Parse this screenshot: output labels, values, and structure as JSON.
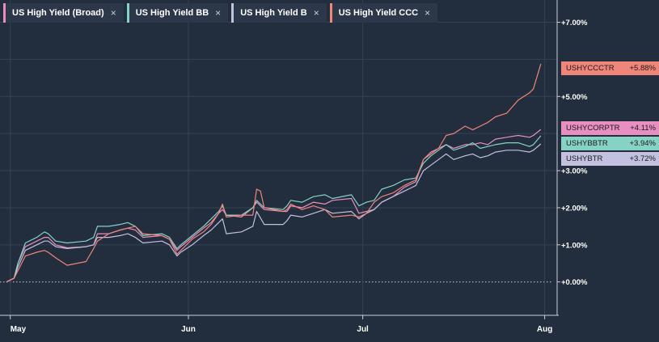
{
  "tabs": [
    {
      "label": "US High Yield (Broad)",
      "close": "×",
      "color": "#e98ec0"
    },
    {
      "label": "US High Yield BB",
      "close": "×",
      "color": "#86d2c5"
    },
    {
      "label": "US High Yield B",
      "close": "×",
      "color": "#c3c0e0"
    },
    {
      "label": "US High Yield CCC",
      "close": "×",
      "color": "#f0857a"
    }
  ],
  "tags": [
    {
      "ticker": "USHYCCCTR",
      "value": "+5.88%",
      "color": "#f0857a"
    },
    {
      "ticker": "USHYCORPTR",
      "value": "+4.11%",
      "color": "#e98ec0"
    },
    {
      "ticker": "USHYBBTR",
      "value": "+3.94%",
      "color": "#86d2c5"
    },
    {
      "ticker": "USHYBTR",
      "value": "+3.72%",
      "color": "#c3c0e0"
    }
  ],
  "chart_data": {
    "type": "line",
    "x_tick_labels": [
      "May",
      "Jun",
      "Jul",
      "Aug"
    ],
    "y_tick_labels": [
      "+0.00%",
      "+1.00%",
      "+2.00%",
      "+3.00%",
      "+5.00%",
      "+7.00%"
    ],
    "y_ticks": [
      0,
      1,
      2,
      3,
      5,
      7
    ],
    "ylim": [
      -0.9,
      7.6
    ],
    "x_ticks": [
      0,
      47,
      93,
      141
    ],
    "xlim": [
      -1,
      143
    ],
    "grid": true,
    "series": [
      {
        "name": "US High Yield (Broad)",
        "color": "#e98ec0",
        "points": [
          [
            -1,
            0
          ],
          [
            1,
            0.1
          ],
          [
            2,
            0.5
          ],
          [
            4,
            0.95
          ],
          [
            7,
            1.1
          ],
          [
            9,
            1.2
          ],
          [
            10,
            1.2
          ],
          [
            12,
            1.0
          ],
          [
            15,
            0.92
          ],
          [
            20,
            0.95
          ],
          [
            22,
            1.0
          ],
          [
            23,
            1.3
          ],
          [
            26,
            1.3
          ],
          [
            29,
            1.4
          ],
          [
            31,
            1.45
          ],
          [
            33,
            1.4
          ],
          [
            35,
            1.2
          ],
          [
            40,
            1.25
          ],
          [
            42,
            1.15
          ],
          [
            44,
            0.85
          ],
          [
            45,
            0.95
          ],
          [
            48,
            1.2
          ],
          [
            51,
            1.45
          ],
          [
            53,
            1.6
          ],
          [
            55,
            1.85
          ],
          [
            56,
            1.95
          ],
          [
            57,
            1.8
          ],
          [
            61,
            1.75
          ],
          [
            64,
            2.0
          ],
          [
            65,
            2.15
          ],
          [
            67,
            1.95
          ],
          [
            72,
            1.9
          ],
          [
            73,
            1.9
          ],
          [
            74,
            2.05
          ],
          [
            77,
            2.0
          ],
          [
            80,
            2.15
          ],
          [
            83,
            2.1
          ],
          [
            85,
            2.2
          ],
          [
            90,
            2.25
          ],
          [
            92,
            1.85
          ],
          [
            94,
            1.9
          ],
          [
            96,
            1.95
          ],
          [
            98,
            2.15
          ],
          [
            101,
            2.3
          ],
          [
            104,
            2.55
          ],
          [
            107,
            2.7
          ],
          [
            109,
            3.3
          ],
          [
            111,
            3.5
          ],
          [
            113,
            3.6
          ],
          [
            115,
            3.7
          ],
          [
            117,
            3.6
          ],
          [
            120,
            3.7
          ],
          [
            122,
            3.7
          ],
          [
            124,
            3.75
          ],
          [
            126,
            3.7
          ],
          [
            128,
            3.85
          ],
          [
            131,
            3.9
          ],
          [
            134,
            3.95
          ],
          [
            137,
            3.9
          ],
          [
            138,
            3.95
          ],
          [
            140,
            4.11
          ]
        ]
      },
      {
        "name": "US High Yield BB",
        "color": "#86d2c5",
        "points": [
          [
            -1,
            0
          ],
          [
            1,
            0.1
          ],
          [
            2,
            0.5
          ],
          [
            4,
            1.05
          ],
          [
            7,
            1.2
          ],
          [
            9,
            1.35
          ],
          [
            10,
            1.3
          ],
          [
            12,
            1.1
          ],
          [
            15,
            1.05
          ],
          [
            20,
            1.1
          ],
          [
            22,
            1.2
          ],
          [
            23,
            1.5
          ],
          [
            26,
            1.5
          ],
          [
            29,
            1.55
          ],
          [
            31,
            1.6
          ],
          [
            33,
            1.5
          ],
          [
            35,
            1.25
          ],
          [
            40,
            1.3
          ],
          [
            42,
            1.2
          ],
          [
            44,
            0.9
          ],
          [
            45,
            1.0
          ],
          [
            48,
            1.25
          ],
          [
            51,
            1.5
          ],
          [
            53,
            1.7
          ],
          [
            55,
            1.9
          ],
          [
            56,
            2.05
          ],
          [
            57,
            1.8
          ],
          [
            61,
            1.8
          ],
          [
            64,
            2.0
          ],
          [
            65,
            2.2
          ],
          [
            67,
            2.0
          ],
          [
            72,
            1.95
          ],
          [
            73,
            2.05
          ],
          [
            74,
            2.2
          ],
          [
            77,
            2.15
          ],
          [
            80,
            2.3
          ],
          [
            83,
            2.35
          ],
          [
            85,
            2.25
          ],
          [
            90,
            2.35
          ],
          [
            92,
            2.05
          ],
          [
            94,
            2.15
          ],
          [
            96,
            2.2
          ],
          [
            98,
            2.5
          ],
          [
            101,
            2.6
          ],
          [
            104,
            2.75
          ],
          [
            107,
            2.8
          ],
          [
            109,
            3.2
          ],
          [
            111,
            3.4
          ],
          [
            113,
            3.55
          ],
          [
            115,
            3.7
          ],
          [
            117,
            3.55
          ],
          [
            120,
            3.65
          ],
          [
            122,
            3.75
          ],
          [
            124,
            3.6
          ],
          [
            126,
            3.65
          ],
          [
            128,
            3.7
          ],
          [
            131,
            3.75
          ],
          [
            134,
            3.75
          ],
          [
            137,
            3.65
          ],
          [
            138,
            3.7
          ],
          [
            140,
            3.94
          ]
        ]
      },
      {
        "name": "US High Yield B",
        "color": "#c3c0e0",
        "points": [
          [
            -1,
            0
          ],
          [
            1,
            0.1
          ],
          [
            2,
            0.4
          ],
          [
            4,
            0.85
          ],
          [
            7,
            1.0
          ],
          [
            9,
            1.1
          ],
          [
            10,
            1.1
          ],
          [
            12,
            0.95
          ],
          [
            15,
            0.9
          ],
          [
            20,
            0.95
          ],
          [
            22,
            1.0
          ],
          [
            23,
            1.2
          ],
          [
            26,
            1.2
          ],
          [
            29,
            1.25
          ],
          [
            31,
            1.3
          ],
          [
            33,
            1.2
          ],
          [
            35,
            1.05
          ],
          [
            40,
            1.1
          ],
          [
            42,
            1.0
          ],
          [
            44,
            0.7
          ],
          [
            45,
            0.8
          ],
          [
            48,
            1.0
          ],
          [
            51,
            1.25
          ],
          [
            53,
            1.4
          ],
          [
            55,
            1.6
          ],
          [
            56,
            1.7
          ],
          [
            57,
            1.3
          ],
          [
            61,
            1.35
          ],
          [
            64,
            1.5
          ],
          [
            65,
            1.9
          ],
          [
            67,
            1.55
          ],
          [
            72,
            1.55
          ],
          [
            73,
            1.65
          ],
          [
            74,
            1.8
          ],
          [
            77,
            1.75
          ],
          [
            80,
            1.85
          ],
          [
            83,
            1.95
          ],
          [
            85,
            1.85
          ],
          [
            90,
            1.9
          ],
          [
            92,
            1.7
          ],
          [
            94,
            1.85
          ],
          [
            96,
            1.95
          ],
          [
            98,
            2.15
          ],
          [
            101,
            2.3
          ],
          [
            104,
            2.45
          ],
          [
            107,
            2.6
          ],
          [
            109,
            3.0
          ],
          [
            111,
            3.15
          ],
          [
            113,
            3.3
          ],
          [
            115,
            3.45
          ],
          [
            117,
            3.3
          ],
          [
            120,
            3.4
          ],
          [
            122,
            3.45
          ],
          [
            124,
            3.35
          ],
          [
            126,
            3.4
          ],
          [
            128,
            3.5
          ],
          [
            131,
            3.55
          ],
          [
            134,
            3.55
          ],
          [
            137,
            3.5
          ],
          [
            138,
            3.55
          ],
          [
            140,
            3.72
          ]
        ]
      },
      {
        "name": "US High Yield CCC",
        "color": "#f0857a",
        "points": [
          [
            -1,
            0
          ],
          [
            1,
            0.1
          ],
          [
            2,
            0.3
          ],
          [
            4,
            0.7
          ],
          [
            7,
            0.8
          ],
          [
            9,
            0.85
          ],
          [
            10,
            0.8
          ],
          [
            12,
            0.65
          ],
          [
            15,
            0.45
          ],
          [
            20,
            0.55
          ],
          [
            22,
            0.9
          ],
          [
            23,
            1.1
          ],
          [
            26,
            1.3
          ],
          [
            29,
            1.4
          ],
          [
            31,
            1.45
          ],
          [
            33,
            1.5
          ],
          [
            35,
            1.3
          ],
          [
            40,
            1.25
          ],
          [
            42,
            1.15
          ],
          [
            44,
            0.75
          ],
          [
            45,
            0.85
          ],
          [
            48,
            1.15
          ],
          [
            51,
            1.35
          ],
          [
            53,
            1.55
          ],
          [
            55,
            1.85
          ],
          [
            56,
            2.1
          ],
          [
            57,
            1.75
          ],
          [
            61,
            1.8
          ],
          [
            64,
            1.8
          ],
          [
            65,
            2.5
          ],
          [
            66,
            2.45
          ],
          [
            67,
            2.0
          ],
          [
            72,
            1.9
          ],
          [
            73,
            1.95
          ],
          [
            74,
            2.1
          ],
          [
            77,
            1.95
          ],
          [
            80,
            2.05
          ],
          [
            83,
            1.95
          ],
          [
            85,
            1.75
          ],
          [
            90,
            1.8
          ],
          [
            92,
            1.75
          ],
          [
            94,
            1.85
          ],
          [
            96,
            2.15
          ],
          [
            98,
            2.3
          ],
          [
            101,
            2.4
          ],
          [
            104,
            2.6
          ],
          [
            107,
            2.75
          ],
          [
            109,
            3.3
          ],
          [
            111,
            3.45
          ],
          [
            113,
            3.6
          ],
          [
            115,
            3.95
          ],
          [
            117,
            4.0
          ],
          [
            120,
            4.2
          ],
          [
            122,
            4.1
          ],
          [
            124,
            4.2
          ],
          [
            126,
            4.3
          ],
          [
            128,
            4.45
          ],
          [
            131,
            4.55
          ],
          [
            134,
            4.9
          ],
          [
            137,
            5.1
          ],
          [
            138,
            5.2
          ],
          [
            140,
            5.88
          ]
        ]
      }
    ]
  }
}
